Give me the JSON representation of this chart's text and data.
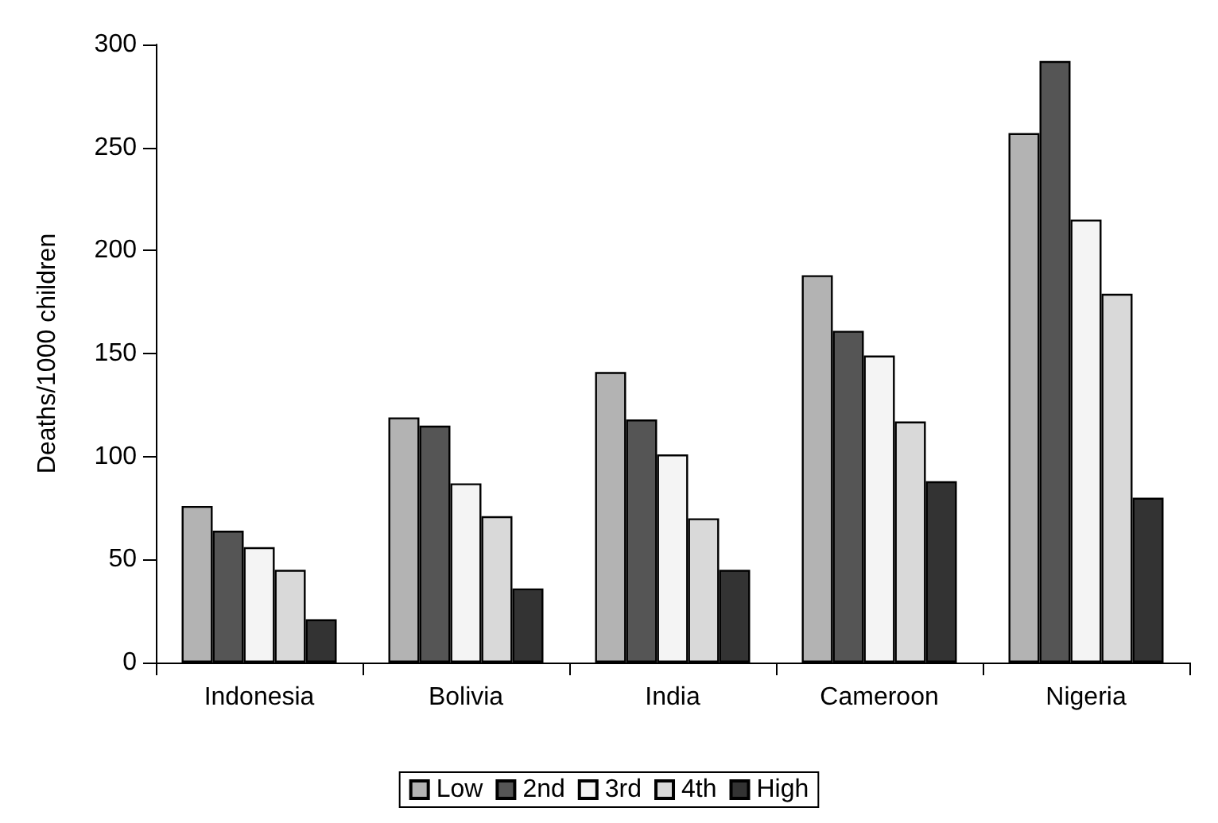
{
  "chart_data": {
    "type": "bar",
    "ylabel": "Deaths/1000 children",
    "categories": [
      "Indonesia",
      "Bolivia",
      "India",
      "Cameroon",
      "Nigeria"
    ],
    "series": [
      {
        "name": "Low",
        "color": "#b3b3b3",
        "values": [
          76,
          119,
          141,
          188,
          257
        ]
      },
      {
        "name": "2nd",
        "color": "#555555",
        "values": [
          64,
          115,
          118,
          161,
          292
        ]
      },
      {
        "name": "3rd",
        "color": "#f4f4f4",
        "values": [
          56,
          87,
          101,
          149,
          215
        ]
      },
      {
        "name": "4th",
        "color": "#d9d9d9",
        "values": [
          45,
          71,
          70,
          117,
          179
        ]
      },
      {
        "name": "High",
        "color": "#333333",
        "values": [
          21,
          36,
          45,
          88,
          80
        ]
      }
    ],
    "ylim": [
      0,
      300
    ],
    "yticks": [
      0,
      50,
      100,
      150,
      200,
      250,
      300
    ],
    "grid": false,
    "legend": "bottom"
  }
}
